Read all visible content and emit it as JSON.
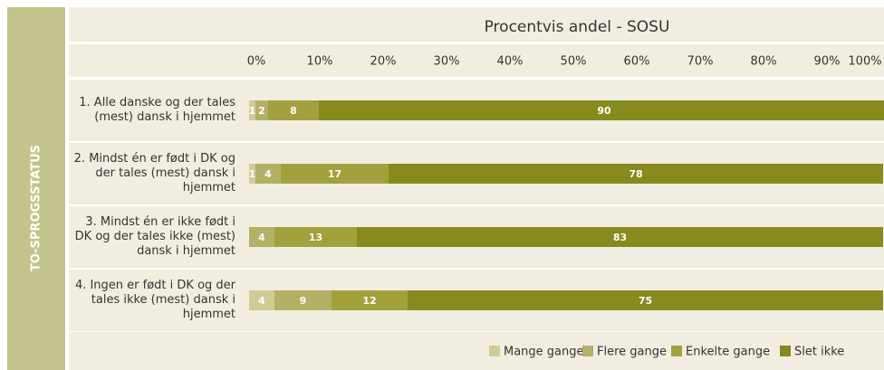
{
  "chart_data": {
    "type": "stacked-bar-horizontal",
    "title": "Procentvis andel - SOSU",
    "side_label": "TO-SPROGSSTATUS",
    "categories": [
      "1. Alle danske og der tales (mest) dansk i hjemmet",
      "2. Mindst én er født i DK og der tales (mest) dansk i hjemmet",
      "3. Mindst én er ikke født i DK og der tales ikke (mest) dansk i hjemmet",
      "4. Ingen er født i DK og der tales ikke (mest) dansk i hjemmet"
    ],
    "series": [
      {
        "name": "Mange gange",
        "color": "#cfcc96",
        "values": [
          1,
          1,
          null,
          4
        ]
      },
      {
        "name": "Flere gange",
        "color": "#b3b166",
        "values": [
          2,
          4,
          4,
          9
        ]
      },
      {
        "name": "Enkelte gange",
        "color": "#a2a13c",
        "values": [
          8,
          17,
          13,
          12
        ]
      },
      {
        "name": "Slet ikke",
        "color": "#878a1c",
        "values": [
          90,
          78,
          83,
          75
        ]
      }
    ],
    "xlim": [
      0,
      100
    ],
    "xticks": [
      {
        "value": 0,
        "label": "0%"
      },
      {
        "value": 10,
        "label": "10%"
      },
      {
        "value": 20,
        "label": "20%"
      },
      {
        "value": 30,
        "label": "30%"
      },
      {
        "value": 40,
        "label": "40%"
      },
      {
        "value": 50,
        "label": "50%"
      },
      {
        "value": 60,
        "label": "60%"
      },
      {
        "value": 70,
        "label": "70%"
      },
      {
        "value": 80,
        "label": "80%"
      },
      {
        "value": 90,
        "label": "90%"
      },
      {
        "value": 100,
        "label": "100%"
      }
    ],
    "legend": "bottom-right"
  }
}
